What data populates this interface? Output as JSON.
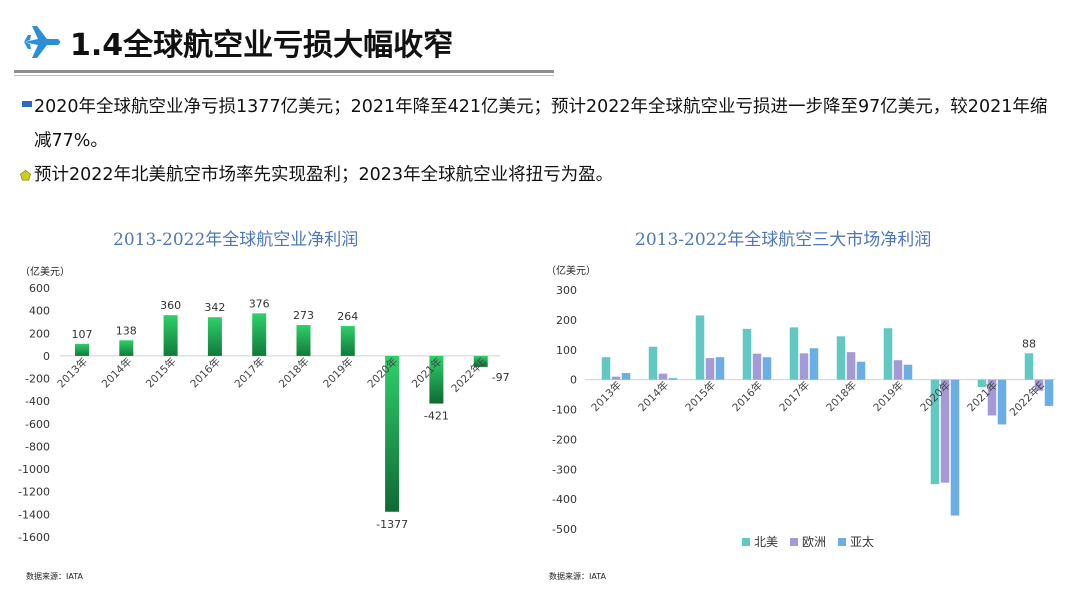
{
  "header": {
    "title": "1.4全球航空业亏损大幅收窄"
  },
  "bullets": [
    "2020年全球航空业净亏损1377亿美元；2021年降至421亿美元；预计2022年全球航空业亏损进一步降至97亿美元，较2021年缩减77%。",
    "预计2022年北美航空市场率先实现盈利；2023年全球航空业将扭亏为盈。"
  ],
  "colors": {
    "title_blue": "#4d77b8",
    "bar_green": "#1fb25a",
    "na": "#62c8c2",
    "eu": "#a69ad6",
    "ap": "#6aaee6"
  },
  "chart_data": [
    {
      "type": "bar",
      "title": "2013-2022年全球航空业净利润",
      "unit": "（亿美元）",
      "source": "数据来源：IATA",
      "categories": [
        "2013年",
        "2014年",
        "2015年",
        "2016年",
        "2017年",
        "2018年",
        "2019年",
        "2020年",
        "2021年",
        "2022年E"
      ],
      "values": [
        107,
        138,
        360,
        342,
        376,
        273,
        264,
        -1377,
        -421,
        -97
      ],
      "data_labels": [
        "107",
        "138",
        "360",
        "342",
        "376",
        "273",
        "264",
        "-1377",
        "-421",
        "-97"
      ],
      "ylim": [
        -1600,
        600
      ],
      "yticks": [
        600,
        400,
        200,
        0,
        -200,
        -400,
        -600,
        -800,
        -1000,
        -1200,
        -1400,
        -1600
      ]
    },
    {
      "type": "bar",
      "title": "2013-2022年全球航空三大市场净利润",
      "unit": "（亿美元）",
      "source": "数据来源：IATA",
      "categories": [
        "2013年",
        "2014年",
        "2015年",
        "2016年",
        "2017年",
        "2018年",
        "2019年",
        "2020年",
        "2021年",
        "2022年E"
      ],
      "series": [
        {
          "name": "北美",
          "values": [
            75,
            110,
            215,
            170,
            175,
            145,
            172,
            -350,
            -25,
            88
          ]
        },
        {
          "name": "欧洲",
          "values": [
            10,
            20,
            72,
            87,
            88,
            92,
            65,
            -345,
            -120,
            -37
          ]
        },
        {
          "name": "亚太",
          "values": [
            22,
            5,
            75,
            75,
            105,
            60,
            50,
            -455,
            -150,
            -88
          ]
        }
      ],
      "data_labels": [
        {
          "series": 0,
          "index": 9,
          "text": "88"
        }
      ],
      "ylim": [
        -500,
        300
      ],
      "yticks": [
        300,
        200,
        100,
        0,
        -100,
        -200,
        -300,
        -400,
        -500
      ]
    }
  ]
}
